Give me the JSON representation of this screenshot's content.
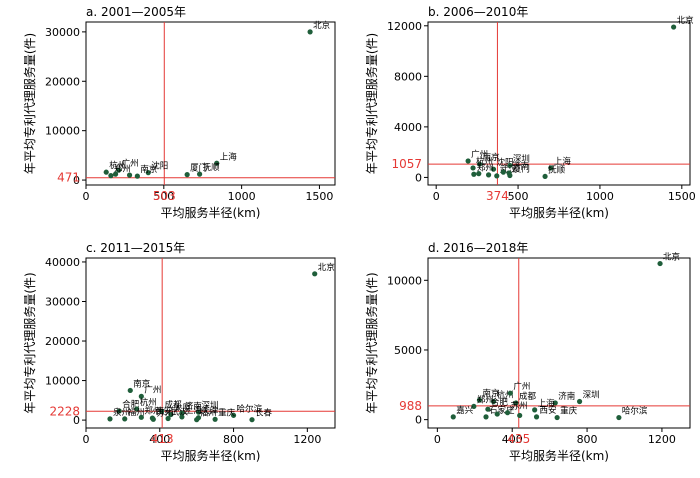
{
  "chart_data": [
    {
      "type": "scatter",
      "title": "a. 2001—2005年",
      "xlabel": "平均服务半径(km)",
      "ylabel": "年平均专利代理服务量(件)",
      "xlim": [
        0,
        1600
      ],
      "ylim": [
        -1000,
        32000
      ],
      "xticks": [
        0,
        500,
        1000,
        1500
      ],
      "yticks": [
        0,
        10000,
        20000,
        30000
      ],
      "vline": 503,
      "hline": 471,
      "vline_label": "503",
      "hline_label": "471",
      "points": [
        {
          "label": "北京",
          "x": 1440,
          "y": 30000
        },
        {
          "label": "上海",
          "x": 840,
          "y": 3400
        },
        {
          "label": "厦门",
          "x": 650,
          "y": 1100
        },
        {
          "label": "抚顺",
          "x": 730,
          "y": 1200
        },
        {
          "label": "沈阳",
          "x": 400,
          "y": 1500
        },
        {
          "label": "广州",
          "x": 210,
          "y": 2000
        },
        {
          "label": "杭州",
          "x": 130,
          "y": 1600
        },
        {
          "label": "郑州",
          "x": 160,
          "y": 900
        },
        {
          "label": "南京",
          "x": 330,
          "y": 800
        },
        {
          "label": "",
          "x": 190,
          "y": 1200
        },
        {
          "label": "",
          "x": 280,
          "y": 1000
        }
      ]
    },
    {
      "type": "scatter",
      "title": "b. 2006—2010年",
      "xlabel": "平均服务半径(km)",
      "ylabel": "年平均专利代理服务量(件)",
      "xlim": [
        -50,
        1550
      ],
      "ylim": [
        -600,
        12300
      ],
      "xticks": [
        0,
        500,
        1000,
        1500
      ],
      "yticks": [
        0,
        4000,
        8000,
        12000
      ],
      "vline": 374,
      "hline": 1057,
      "vline_label": "374",
      "hline_label": "1057",
      "points": [
        {
          "label": "北京",
          "x": 1450,
          "y": 11900
        },
        {
          "label": "广州",
          "x": 195,
          "y": 1300
        },
        {
          "label": "南京",
          "x": 265,
          "y": 1050
        },
        {
          "label": "杭州",
          "x": 225,
          "y": 750
        },
        {
          "label": "沈阳",
          "x": 350,
          "y": 650
        },
        {
          "label": "深圳",
          "x": 450,
          "y": 950
        },
        {
          "label": "上海",
          "x": 700,
          "y": 750
        },
        {
          "label": "郑州",
          "x": 230,
          "y": 250
        },
        {
          "label": "武汉",
          "x": 370,
          "y": 120
        },
        {
          "label": "济南",
          "x": 445,
          "y": 350
        },
        {
          "label": "厦门",
          "x": 450,
          "y": 150
        },
        {
          "label": "抚顺",
          "x": 665,
          "y": 80
        },
        {
          "label": "",
          "x": 260,
          "y": 300
        },
        {
          "label": "",
          "x": 320,
          "y": 200
        },
        {
          "label": "",
          "x": 410,
          "y": 420
        }
      ]
    },
    {
      "type": "scatter",
      "title": "c. 2011—2015年",
      "xlabel": "平均服务半径(km)",
      "ylabel": "年平均专利代理服务量(件)",
      "xlim": [
        0,
        1350
      ],
      "ylim": [
        -2000,
        41000
      ],
      "xticks": [
        0,
        400,
        800,
        1200
      ],
      "yticks": [
        0,
        10000,
        20000,
        30000,
        40000
      ],
      "vline": 413,
      "hline": 2228,
      "vline_label": "413",
      "hline_label": "2228",
      "points": [
        {
          "label": "北京",
          "x": 1240,
          "y": 37000
        },
        {
          "label": "南京",
          "x": 240,
          "y": 7500
        },
        {
          "label": "广州",
          "x": 300,
          "y": 6000
        },
        {
          "label": "合肥",
          "x": 180,
          "y": 2300
        },
        {
          "label": "杭州",
          "x": 275,
          "y": 2800
        },
        {
          "label": "成都",
          "x": 410,
          "y": 2200
        },
        {
          "label": "济南",
          "x": 520,
          "y": 1800
        },
        {
          "label": "深圳",
          "x": 610,
          "y": 2000
        },
        {
          "label": "郑州",
          "x": 300,
          "y": 700
        },
        {
          "label": "西安",
          "x": 360,
          "y": 500
        },
        {
          "label": "太原",
          "x": 460,
          "y": 1400
        },
        {
          "label": "上海",
          "x": 520,
          "y": 800
        },
        {
          "label": "天津",
          "x": 610,
          "y": 600
        },
        {
          "label": "哈尔滨",
          "x": 800,
          "y": 1200
        },
        {
          "label": "泉州",
          "x": 130,
          "y": 300
        },
        {
          "label": "福州",
          "x": 210,
          "y": 300
        },
        {
          "label": "苏州",
          "x": 365,
          "y": 200
        },
        {
          "label": "武汉",
          "x": 445,
          "y": 400
        },
        {
          "label": "福州",
          "x": 600,
          "y": 100
        },
        {
          "label": "重庆",
          "x": 700,
          "y": 200
        },
        {
          "label": "长春",
          "x": 900,
          "y": 100
        }
      ]
    },
    {
      "type": "scatter",
      "title": "d. 2016—2018年",
      "xlabel": "平均服务半径(km)",
      "ylabel": "年平均专利代理服务量(件)",
      "xlim": [
        -50,
        1350
      ],
      "ylim": [
        -600,
        11600
      ],
      "xticks": [
        0,
        400,
        800,
        1200
      ],
      "yticks": [
        0,
        5000,
        10000
      ],
      "vline": 435,
      "hline": 988,
      "vline_label": "435",
      "hline_label": "988",
      "points": [
        {
          "label": "北京",
          "x": 1190,
          "y": 11200
        },
        {
          "label": "南京",
          "x": 225,
          "y": 1400
        },
        {
          "label": "杭州",
          "x": 300,
          "y": 1300
        },
        {
          "label": "广州",
          "x": 390,
          "y": 1900
        },
        {
          "label": "成都",
          "x": 420,
          "y": 1200
        },
        {
          "label": "郑州",
          "x": 195,
          "y": 950
        },
        {
          "label": "合肥",
          "x": 270,
          "y": 750
        },
        {
          "label": "济南",
          "x": 630,
          "y": 1200
        },
        {
          "label": "深圳",
          "x": 760,
          "y": 1300
        },
        {
          "label": "嘉兴",
          "x": 85,
          "y": 200
        },
        {
          "label": "石家庄",
          "x": 260,
          "y": 200
        },
        {
          "label": "苏州",
          "x": 375,
          "y": 500
        },
        {
          "label": "上海",
          "x": 520,
          "y": 700
        },
        {
          "label": "西安",
          "x": 530,
          "y": 200
        },
        {
          "label": "重庆",
          "x": 640,
          "y": 150
        },
        {
          "label": "哈尔滨",
          "x": 970,
          "y": 150
        },
        {
          "label": "",
          "x": 320,
          "y": 400
        },
        {
          "label": "",
          "x": 440,
          "y": 300
        }
      ]
    }
  ]
}
